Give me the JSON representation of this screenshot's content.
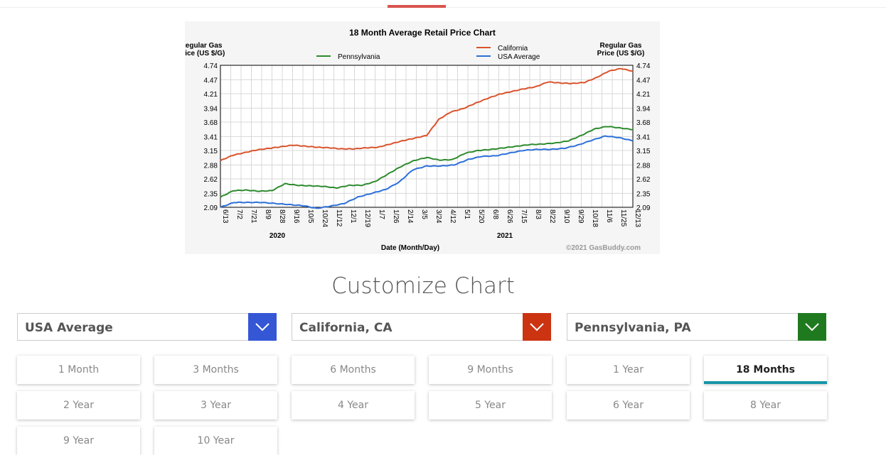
{
  "chart_data": {
    "type": "line",
    "title": "18 Month Average Retail Price Chart",
    "ylabel_left": "Regular Gas\nPrice (US $/G)",
    "ylabel_right": "Regular Gas\nPrice (US $/G)",
    "xlabel": "Date (Month/Day)",
    "credit": "©2021 GasBuddy.com",
    "ylim": [
      2.09,
      4.74
    ],
    "yticks": [
      "4.74",
      "4.47",
      "4.21",
      "3.94",
      "3.68",
      "3.41",
      "3.15",
      "2.88",
      "2.62",
      "2.35",
      "2.09"
    ],
    "xticks": [
      "6/13",
      "7/2",
      "7/21",
      "8/9",
      "8/28",
      "9/16",
      "10/5",
      "10/24",
      "11/12",
      "12/1",
      "12/19",
      "1/7",
      "1/26",
      "2/14",
      "3/5",
      "3/24",
      "4/12",
      "5/1",
      "5/20",
      "6/8",
      "6/26",
      "7/15",
      "8/3",
      "8/22",
      "9/10",
      "9/29",
      "10/18",
      "11/6",
      "11/25",
      "12/13"
    ],
    "year_labels": [
      {
        "label": "2020",
        "after_tick": 4
      },
      {
        "label": "2021",
        "after_tick": 20
      }
    ],
    "legend": [
      {
        "name": "Pennsylvania",
        "color": "#2e8b2e"
      },
      {
        "name": "California",
        "color": "#d9532c"
      },
      {
        "name": "USA Average",
        "color": "#2c6fd9"
      }
    ],
    "series": [
      {
        "name": "California",
        "color": "#d9532c",
        "values": [
          2.96,
          3.06,
          3.11,
          3.16,
          3.19,
          3.22,
          3.25,
          3.23,
          3.21,
          3.2,
          3.18,
          3.18,
          3.2,
          3.21,
          3.27,
          3.33,
          3.38,
          3.43,
          3.73,
          3.87,
          3.93,
          4.03,
          4.12,
          4.2,
          4.25,
          4.3,
          4.34,
          4.43,
          4.41,
          4.4,
          4.42,
          4.51,
          4.63,
          4.68,
          4.63
        ]
      },
      {
        "name": "Pennsylvania",
        "color": "#2e8b2e",
        "values": [
          2.28,
          2.4,
          2.41,
          2.39,
          2.4,
          2.53,
          2.5,
          2.49,
          2.48,
          2.45,
          2.5,
          2.5,
          2.57,
          2.71,
          2.85,
          2.96,
          3.02,
          2.97,
          2.98,
          3.1,
          3.15,
          3.17,
          3.2,
          3.23,
          3.26,
          3.27,
          3.29,
          3.33,
          3.43,
          3.55,
          3.6,
          3.57,
          3.54
        ]
      },
      {
        "name": "USA Average",
        "color": "#2c6fd9",
        "values": [
          2.09,
          2.18,
          2.18,
          2.18,
          2.16,
          2.14,
          2.12,
          2.07,
          2.11,
          2.16,
          2.28,
          2.35,
          2.42,
          2.56,
          2.79,
          2.86,
          2.86,
          2.88,
          2.98,
          3.04,
          3.05,
          3.1,
          3.15,
          3.17,
          3.17,
          3.19,
          3.25,
          3.34,
          3.42,
          3.39,
          3.33
        ]
      }
    ]
  },
  "heading": "Customize Chart",
  "selects": [
    {
      "label": "USA Average",
      "color": "#3557d6"
    },
    {
      "label": "California, CA",
      "color": "#cc3311"
    },
    {
      "label": "Pennsylvania, PA",
      "color": "#1f7a1f"
    }
  ],
  "ranges": {
    "active": "18 Months",
    "items": [
      "1 Month",
      "3 Months",
      "6 Months",
      "9 Months",
      "1 Year",
      "18 Months",
      "2 Year",
      "3 Year",
      "4 Year",
      "5 Year",
      "6 Year",
      "8 Year",
      "9 Year",
      "10 Year"
    ]
  }
}
